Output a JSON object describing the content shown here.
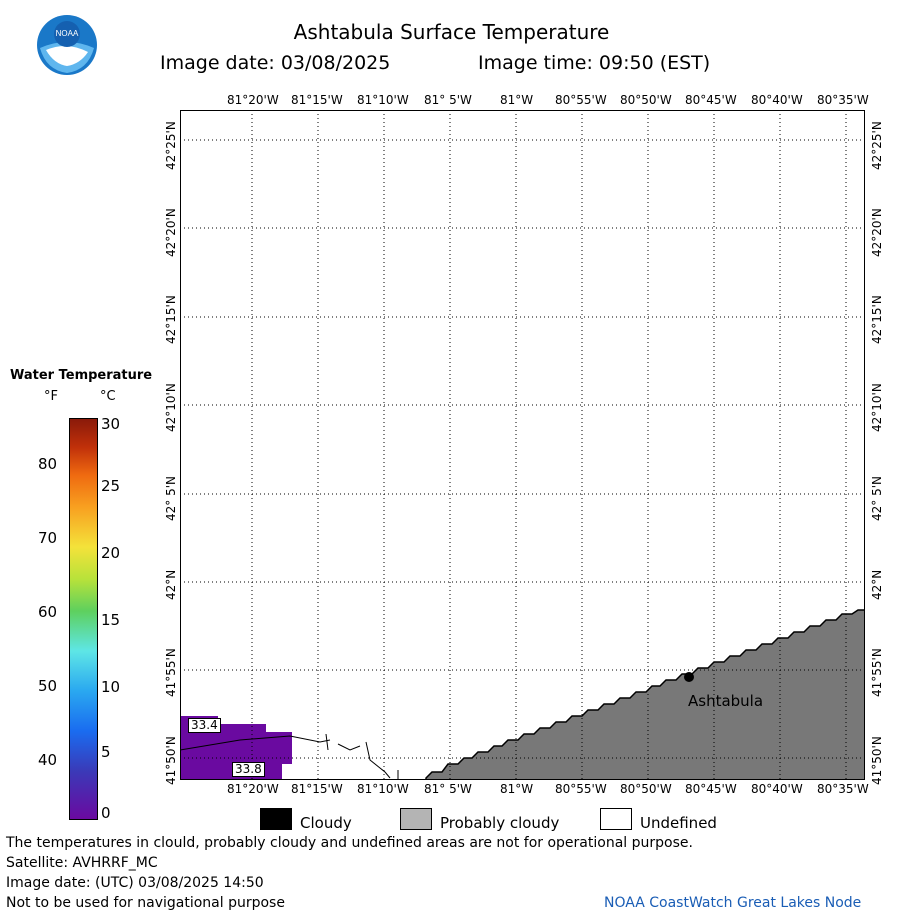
{
  "header": {
    "title": "Ashtabula Surface Temperature",
    "image_date": "Image date: 03/08/2025",
    "image_time": "Image time: 09:50 (EST)"
  },
  "map": {
    "lon_labels": [
      "81°20'W",
      "81°15'W",
      "81°10'W",
      "81° 5'W",
      "81°W",
      "80°55'W",
      "80°50'W",
      "80°45'W",
      "80°40'W",
      "80°35'W"
    ],
    "lat_labels": [
      "42°25'N",
      "42°20'N",
      "42°15'N",
      "42°10'N",
      "42° 5'N",
      "42°N",
      "41°55'N",
      "41°50'N"
    ],
    "town": "Ashtabula",
    "temp_labels": [
      "33.4",
      "33.8"
    ]
  },
  "legend": {
    "title": "Water Temperature",
    "unit_f": "°F",
    "unit_c": "°C",
    "f_ticks": [
      "80",
      "70",
      "60",
      "50",
      "40"
    ],
    "c_ticks": [
      "30",
      "25",
      "20",
      "15",
      "10",
      "5",
      "0"
    ],
    "colors": [
      "#6a0aa0",
      "#3a3ab8",
      "#1a6cf0",
      "#2aa8f0",
      "#5ee6e6",
      "#5ed05e",
      "#b8e23a",
      "#f4e23a",
      "#f8a020",
      "#ef6a10",
      "#c0300a",
      "#8a1a0a"
    ]
  },
  "key": {
    "cloudy": "Cloudy",
    "probably_cloudy": "Probably cloudy",
    "undefined": "Undefined",
    "colors": {
      "cloudy": "#000000",
      "probably_cloudy": "#b4b4b4",
      "undefined": "#ffffff",
      "land": "#787878",
      "water_cold": "#6a0aa0"
    }
  },
  "footer": {
    "line1": "The temperatures in clould, probably cloudy and undefined areas are not for operational purpose.",
    "line2": "Satellite: AVHRRF_MC",
    "line3": "Image date: (UTC) 03/08/2025  14:50",
    "line4": "Not to be used for navigational purpose",
    "credit": "NOAA CoastWatch Great Lakes Node"
  }
}
